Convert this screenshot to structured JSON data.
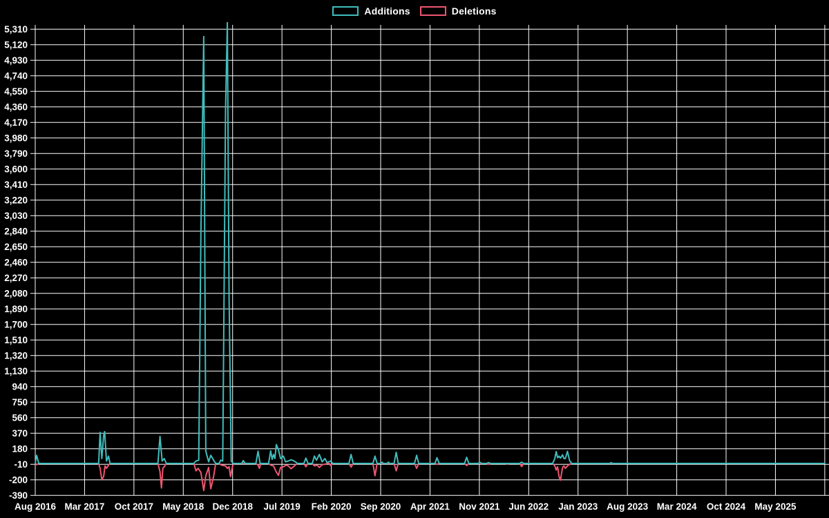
{
  "legend": {
    "additions_label": "Additions",
    "deletions_label": "Deletions"
  },
  "colors": {
    "background": "#000000",
    "grid": "#ffffff",
    "text": "#ffffff",
    "additions": "#40bdbd",
    "deletions": "#ef5670"
  },
  "chart_data": {
    "type": "line",
    "title": "",
    "xlabel": "",
    "ylabel": "",
    "grid": true,
    "legend_position": "top-center",
    "legend": [
      {
        "name": "Additions",
        "color": "#40bdbd"
      },
      {
        "name": "Deletions",
        "color": "#ef5670"
      }
    ],
    "x_axis": {
      "tick_labels": [
        "Aug 2016",
        "Mar 2017",
        "Oct 2017",
        "May 2018",
        "Dec 2018",
        "Jul 2019",
        "Feb 2020",
        "Sep 2020",
        "Apr 2021",
        "Nov 2021",
        "Jun 2022",
        "Jan 2023",
        "Aug 2023",
        "Mar 2024",
        "Oct 2024",
        "May 2025"
      ],
      "months_per_tick": 7,
      "total_months": 112,
      "extra_unlabeled_gridline": true
    },
    "y_axis": {
      "min": -390,
      "max": 5310,
      "tick_step": 190,
      "tick_values": [
        5310,
        5120,
        4930,
        4740,
        4550,
        4360,
        4170,
        3980,
        3790,
        3600,
        3410,
        3220,
        3030,
        2840,
        2650,
        2460,
        2270,
        2080,
        1890,
        1700,
        1510,
        1320,
        1130,
        940,
        750,
        560,
        370,
        180,
        -10,
        -200,
        -390
      ]
    },
    "series": [
      {
        "name": "Additions",
        "color": "#40bdbd",
        "points": [
          [
            0,
            0
          ],
          [
            0.2,
            100
          ],
          [
            0.5,
            0
          ],
          [
            9.0,
            0
          ],
          [
            9.2,
            380
          ],
          [
            9.45,
            60
          ],
          [
            9.7,
            340
          ],
          [
            9.85,
            390
          ],
          [
            10.1,
            30
          ],
          [
            10.4,
            90
          ],
          [
            10.6,
            0
          ],
          [
            17.4,
            0
          ],
          [
            17.7,
            330
          ],
          [
            18.0,
            30
          ],
          [
            18.3,
            60
          ],
          [
            18.6,
            0
          ],
          [
            22.5,
            0
          ],
          [
            22.8,
            30
          ],
          [
            23.2,
            40
          ],
          [
            23.5,
            2800
          ],
          [
            23.9,
            5220
          ],
          [
            24.2,
            150
          ],
          [
            24.6,
            20
          ],
          [
            24.9,
            100
          ],
          [
            25.3,
            40
          ],
          [
            25.6,
            0
          ],
          [
            26.1,
            0
          ],
          [
            26.3,
            40
          ],
          [
            26.6,
            30
          ],
          [
            27.0,
            4330
          ],
          [
            27.25,
            5390
          ],
          [
            27.5,
            2020
          ],
          [
            27.8,
            30
          ],
          [
            28.1,
            0
          ],
          [
            29.3,
            0
          ],
          [
            29.5,
            35
          ],
          [
            29.8,
            0
          ],
          [
            31.3,
            0
          ],
          [
            31.6,
            150
          ],
          [
            31.9,
            0
          ],
          [
            33.1,
            0
          ],
          [
            33.4,
            155
          ],
          [
            33.6,
            50
          ],
          [
            33.8,
            110
          ],
          [
            34.0,
            60
          ],
          [
            34.2,
            230
          ],
          [
            34.5,
            170
          ],
          [
            34.8,
            60
          ],
          [
            35.2,
            90
          ],
          [
            35.5,
            20
          ],
          [
            35.9,
            30
          ],
          [
            36.3,
            45
          ],
          [
            36.6,
            35
          ],
          [
            36.9,
            20
          ],
          [
            37.2,
            0
          ],
          [
            38.1,
            0
          ],
          [
            38.4,
            65
          ],
          [
            38.7,
            0
          ],
          [
            39.3,
            0
          ],
          [
            39.6,
            90
          ],
          [
            39.9,
            40
          ],
          [
            40.3,
            110
          ],
          [
            40.7,
            20
          ],
          [
            41.1,
            60
          ],
          [
            41.4,
            10
          ],
          [
            41.9,
            30
          ],
          [
            42.2,
            0
          ],
          [
            44.5,
            0
          ],
          [
            44.8,
            110
          ],
          [
            45.1,
            0
          ],
          [
            47.9,
            0
          ],
          [
            48.2,
            90
          ],
          [
            48.5,
            0
          ],
          [
            49.0,
            0
          ],
          [
            49.2,
            15
          ],
          [
            49.4,
            0
          ],
          [
            49.9,
            0
          ],
          [
            50.1,
            15
          ],
          [
            50.3,
            0
          ],
          [
            50.9,
            0
          ],
          [
            51.2,
            135
          ],
          [
            51.5,
            0
          ],
          [
            53.8,
            0
          ],
          [
            54.1,
            100
          ],
          [
            54.4,
            0
          ],
          [
            56.7,
            0
          ],
          [
            57.0,
            70
          ],
          [
            57.3,
            0
          ],
          [
            60.9,
            0
          ],
          [
            61.2,
            75
          ],
          [
            61.5,
            0
          ],
          [
            62.8,
            0
          ],
          [
            63.1,
            12
          ],
          [
            63.4,
            0
          ],
          [
            64.0,
            0
          ],
          [
            64.3,
            10
          ],
          [
            64.6,
            0
          ],
          [
            68.7,
            0
          ],
          [
            69.0,
            15
          ],
          [
            69.3,
            0
          ],
          [
            73.4,
            0
          ],
          [
            73.7,
            60
          ],
          [
            73.9,
            145
          ],
          [
            74.1,
            70
          ],
          [
            74.3,
            90
          ],
          [
            74.5,
            65
          ],
          [
            74.8,
            105
          ],
          [
            75.0,
            60
          ],
          [
            75.2,
            60
          ],
          [
            75.5,
            148
          ],
          [
            75.8,
            35
          ],
          [
            76.1,
            0
          ],
          [
            81.5,
            0
          ],
          [
            81.7,
            10
          ],
          [
            81.9,
            0
          ],
          [
            112,
            0
          ]
        ]
      },
      {
        "name": "Deletions",
        "color": "#ef5670",
        "points": [
          [
            0,
            0
          ],
          [
            0.2,
            -15
          ],
          [
            0.5,
            0
          ],
          [
            9.0,
            0
          ],
          [
            9.2,
            -60
          ],
          [
            9.45,
            -200
          ],
          [
            9.7,
            -160
          ],
          [
            9.9,
            -30
          ],
          [
            10.1,
            -60
          ],
          [
            10.4,
            -20
          ],
          [
            10.6,
            0
          ],
          [
            17.4,
            0
          ],
          [
            17.7,
            -100
          ],
          [
            17.9,
            -300
          ],
          [
            18.1,
            -60
          ],
          [
            18.3,
            -40
          ],
          [
            18.6,
            0
          ],
          [
            22.5,
            0
          ],
          [
            22.8,
            -90
          ],
          [
            23.1,
            -60
          ],
          [
            23.5,
            -110
          ],
          [
            23.9,
            -330
          ],
          [
            24.2,
            -150
          ],
          [
            24.6,
            -50
          ],
          [
            24.9,
            -310
          ],
          [
            25.3,
            -160
          ],
          [
            25.6,
            0
          ],
          [
            26.1,
            0
          ],
          [
            26.4,
            -20
          ],
          [
            27.0,
            -30
          ],
          [
            27.25,
            -60
          ],
          [
            27.5,
            -40
          ],
          [
            27.7,
            -160
          ],
          [
            28.0,
            -30
          ],
          [
            28.2,
            0
          ],
          [
            31.3,
            0
          ],
          [
            31.6,
            -20
          ],
          [
            31.8,
            -60
          ],
          [
            32.0,
            0
          ],
          [
            33.1,
            0
          ],
          [
            33.4,
            -20
          ],
          [
            33.8,
            -30
          ],
          [
            34.2,
            -105
          ],
          [
            34.5,
            -145
          ],
          [
            34.8,
            -50
          ],
          [
            35.2,
            -40
          ],
          [
            35.6,
            -20
          ],
          [
            35.9,
            -30
          ],
          [
            36.3,
            -65
          ],
          [
            36.6,
            -40
          ],
          [
            36.9,
            -20
          ],
          [
            37.2,
            0
          ],
          [
            38.1,
            0
          ],
          [
            38.4,
            -40
          ],
          [
            38.7,
            0
          ],
          [
            39.3,
            0
          ],
          [
            39.6,
            -30
          ],
          [
            40.0,
            -20
          ],
          [
            40.3,
            -50
          ],
          [
            40.7,
            -15
          ],
          [
            41.1,
            -10
          ],
          [
            41.4,
            0
          ],
          [
            41.7,
            0
          ],
          [
            41.9,
            -25
          ],
          [
            42.2,
            0
          ],
          [
            44.5,
            0
          ],
          [
            44.8,
            -45
          ],
          [
            45.1,
            0
          ],
          [
            47.9,
            0
          ],
          [
            48.2,
            -150
          ],
          [
            48.5,
            0
          ],
          [
            50.9,
            0
          ],
          [
            51.2,
            -90
          ],
          [
            51.5,
            0
          ],
          [
            53.8,
            0
          ],
          [
            54.1,
            -60
          ],
          [
            54.4,
            0
          ],
          [
            56.7,
            0
          ],
          [
            57.0,
            -10
          ],
          [
            57.3,
            0
          ],
          [
            60.9,
            0
          ],
          [
            61.2,
            -25
          ],
          [
            61.5,
            0
          ],
          [
            64.0,
            0
          ],
          [
            64.3,
            -12
          ],
          [
            64.6,
            0
          ],
          [
            66.8,
            0
          ],
          [
            67.0,
            -12
          ],
          [
            67.2,
            0
          ],
          [
            68.7,
            0
          ],
          [
            69.0,
            -38
          ],
          [
            69.3,
            0
          ],
          [
            73.4,
            0
          ],
          [
            73.7,
            -30
          ],
          [
            73.9,
            -80
          ],
          [
            74.1,
            -40
          ],
          [
            74.3,
            -160
          ],
          [
            74.5,
            -205
          ],
          [
            74.8,
            -50
          ],
          [
            75.0,
            -30
          ],
          [
            75.2,
            -60
          ],
          [
            75.5,
            -30
          ],
          [
            75.8,
            -10
          ],
          [
            76.1,
            0
          ],
          [
            112,
            0
          ]
        ]
      }
    ]
  }
}
